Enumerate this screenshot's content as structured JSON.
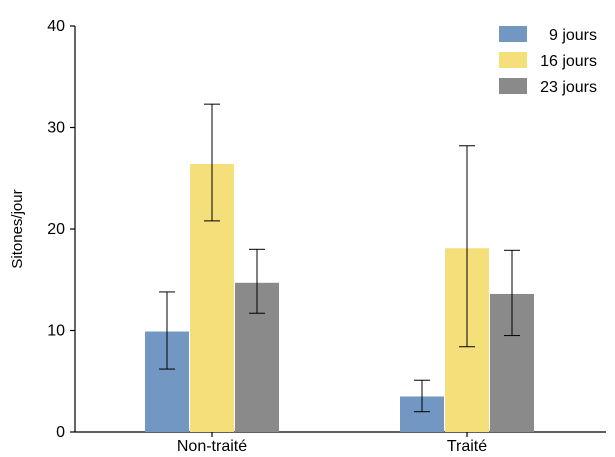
{
  "chart_data": {
    "type": "bar",
    "title": "",
    "xlabel": "",
    "ylabel": "Sitones/jour",
    "ylim": [
      0,
      40
    ],
    "yticks": [
      0,
      10,
      20,
      30,
      40
    ],
    "categories": [
      "Non-traité",
      "Traité"
    ],
    "series": [
      {
        "name": "9 jours",
        "color": "#7197c2",
        "values": [
          9.9,
          3.5
        ],
        "err_low": [
          6.2,
          2.0
        ],
        "err_high": [
          13.8,
          5.1
        ]
      },
      {
        "name": "16 jours",
        "color": "#f4df7a",
        "values": [
          26.4,
          18.1
        ],
        "err_low": [
          20.8,
          8.4
        ],
        "err_high": [
          32.3,
          28.2
        ]
      },
      {
        "name": "23 jours",
        "color": "#8a8a8a",
        "values": [
          14.7,
          13.6
        ],
        "err_low": [
          11.7,
          9.5
        ],
        "err_high": [
          18.0,
          17.9
        ]
      }
    ],
    "grid": false,
    "legend_position": "top-right"
  }
}
